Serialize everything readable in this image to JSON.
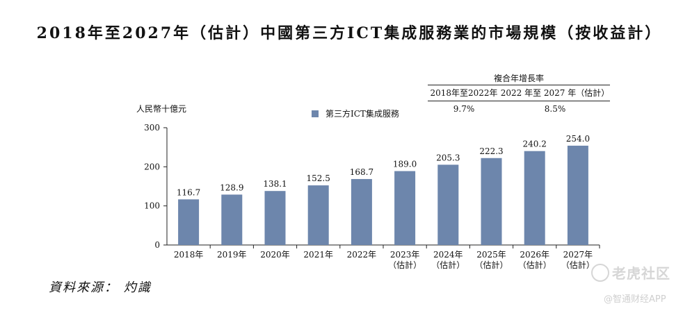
{
  "title": "2018年至2027年（估計）中國第三方ICT集成服務業的市場規模（按收益計）",
  "cagr_table": {
    "header": "複合年增長率",
    "periods": [
      "2018年至2022年",
      "2022 年至 2027 年（估計）"
    ],
    "values": [
      "9.7%",
      "8.5%"
    ]
  },
  "unit_label": "人民幣十億元",
  "source": "資料來源： 灼識",
  "watermark": {
    "brand": "老虎社区",
    "app": "@智通财经APP"
  },
  "colors": {
    "bar": "#6d86ac",
    "axis": "#222222"
  },
  "chart_data": {
    "type": "bar",
    "categories": [
      "2018年",
      "2019年",
      "2020年",
      "2021年",
      "2022年",
      "2023年\n（估計）",
      "2024年\n（估計）",
      "2025年\n（估計）",
      "2026年\n（估計）",
      "2027年\n（估計）"
    ],
    "series": [
      {
        "name": "第三方ICT集成服務",
        "values": [
          116.7,
          128.9,
          138.1,
          152.5,
          168.7,
          189.0,
          205.3,
          222.3,
          240.2,
          254.0
        ]
      }
    ],
    "value_labels": [
      "116.7",
      "128.9",
      "138.1",
      "152.5",
      "168.7",
      "189.0",
      "205.3",
      "222.3",
      "240.2",
      "254.0"
    ],
    "yticks": [
      "0",
      "100",
      "200",
      "300"
    ],
    "ylim": [
      0,
      300
    ],
    "ylabel": "人民幣十億元",
    "legend_position": "top"
  }
}
